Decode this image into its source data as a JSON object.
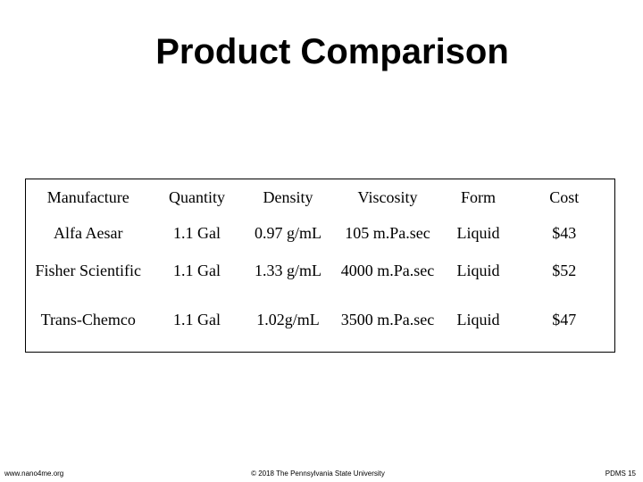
{
  "header": {
    "title": "Product Comparison"
  },
  "table": {
    "columns": [
      "Manufacture",
      "Quantity",
      "Density",
      "Viscosity",
      "Form",
      "Cost"
    ],
    "rows": [
      [
        "Alfa Aesar",
        "1.1 Gal",
        "0.97 g/mL",
        "105 m.Pa.sec",
        "Liquid",
        "$43"
      ],
      [
        "Fisher Scientific",
        "1.1 Gal",
        "1.33 g/mL",
        "4000 m.Pa.sec",
        "Liquid",
        "$52"
      ],
      [
        "Trans-Chemco",
        "1.1 Gal",
        "1.02g/mL",
        "3500 m.Pa.sec",
        "Liquid",
        "$47"
      ]
    ]
  },
  "footer": {
    "left": "www.nano4me.org",
    "center": "© 2018 The Pennsylvania State University",
    "right": "PDMS 15"
  }
}
